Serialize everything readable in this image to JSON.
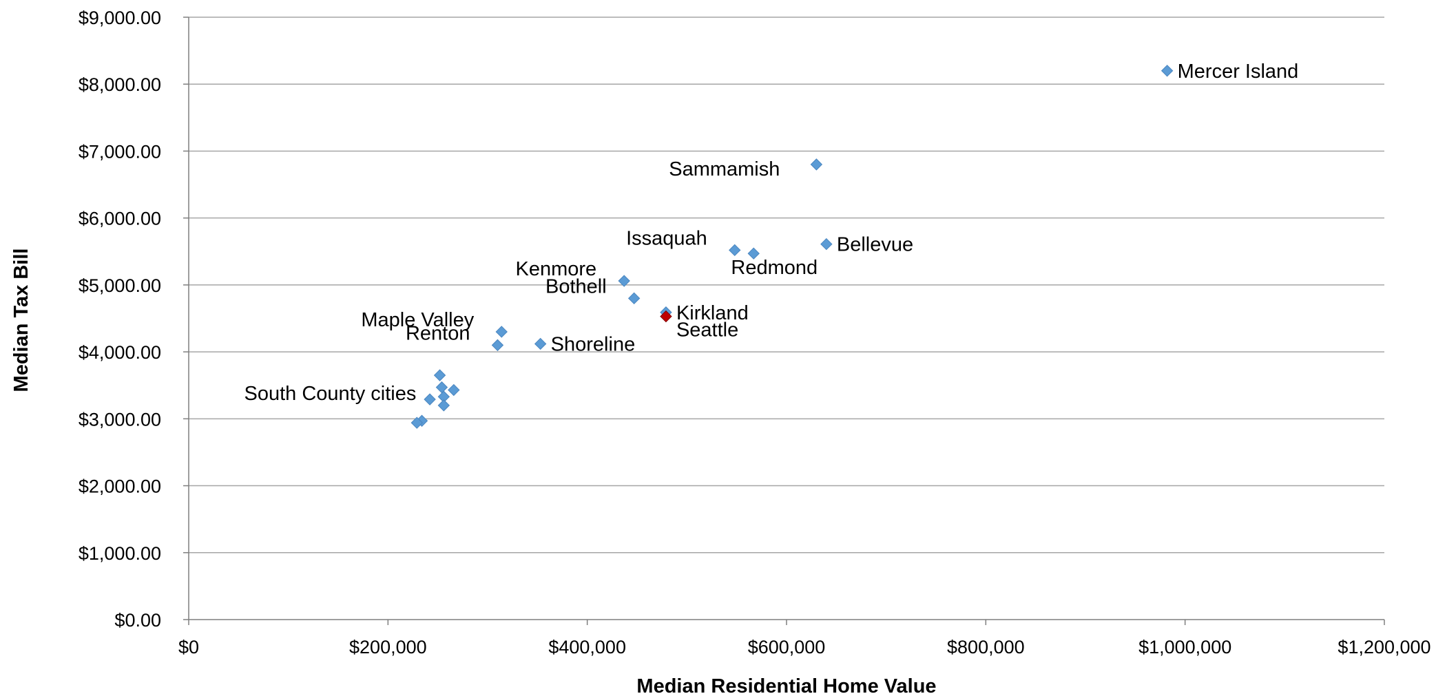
{
  "chart_data": {
    "type": "scatter",
    "xlabel": "Median Residential Home Value",
    "ylabel": "Median Tax Bill",
    "xlim": [
      0,
      1200000
    ],
    "ylim": [
      0,
      9000
    ],
    "x_ticks": [
      "$0",
      "$200,000",
      "$400,000",
      "$600,000",
      "$800,000",
      "$1,000,000",
      "$1,200,000"
    ],
    "y_ticks": [
      "$0.00",
      "$1,000.00",
      "$2,000.00",
      "$3,000.00",
      "$4,000.00",
      "$5,000.00",
      "$6,000.00",
      "$7,000.00",
      "$8,000.00",
      "$9,000.00"
    ],
    "grid": "horizontal",
    "colors": {
      "default": "#5b9bd5",
      "highlight": "#c00000",
      "gridline": "#a6a6a6",
      "axis": "#7f7f7f"
    },
    "points": [
      {
        "x": 982000,
        "y": 8200,
        "label": "Mercer Island",
        "label_pos": "right"
      },
      {
        "x": 630000,
        "y": 6800,
        "label": "Sammamish",
        "label_pos": "left"
      },
      {
        "x": 640000,
        "y": 5610,
        "label": "Bellevue",
        "label_pos": "right"
      },
      {
        "x": 548000,
        "y": 5520,
        "label": "Issaquah",
        "label_pos": "upper-left"
      },
      {
        "x": 567000,
        "y": 5470,
        "label": "Redmond",
        "label_pos": "below"
      },
      {
        "x": 437000,
        "y": 5060,
        "label": "Kenmore",
        "label_pos": "upper-left"
      },
      {
        "x": 447000,
        "y": 4800,
        "label": "Bothell",
        "label_pos": "upper-left"
      },
      {
        "x": 479000,
        "y": 4590,
        "label": "Kirkland",
        "label_pos": "right"
      },
      {
        "x": 479000,
        "y": 4530,
        "label": "Seattle",
        "label_pos": "lower-right",
        "highlight": true
      },
      {
        "x": 314000,
        "y": 4300,
        "label": "Maple Valley",
        "label_pos": "upper-left"
      },
      {
        "x": 310000,
        "y": 4100,
        "label": "Renton",
        "label_pos": "upper-left"
      },
      {
        "x": 353000,
        "y": 4120,
        "label": "Shoreline",
        "label_pos": "right"
      },
      {
        "x": 252000,
        "y": 3650,
        "label": ""
      },
      {
        "x": 254000,
        "y": 3470,
        "label": ""
      },
      {
        "x": 266000,
        "y": 3430,
        "label": ""
      },
      {
        "x": 256000,
        "y": 3330,
        "label": ""
      },
      {
        "x": 242000,
        "y": 3290,
        "label": ""
      },
      {
        "x": 256000,
        "y": 3200,
        "label": "South County cities",
        "label_pos": "upper-left"
      },
      {
        "x": 234000,
        "y": 2970,
        "label": ""
      },
      {
        "x": 229000,
        "y": 2940,
        "label": ""
      }
    ]
  }
}
